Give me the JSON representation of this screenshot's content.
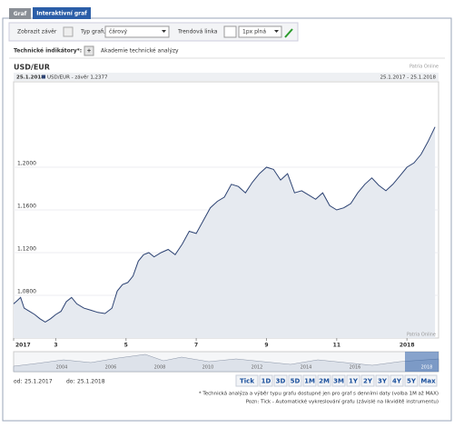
{
  "tabs": [
    "Graf",
    "Interaktivní graf"
  ],
  "toolbar": {
    "close_label": "Zobrazit závěr",
    "type_label": "Typ grafu*",
    "type_value": "čárový",
    "trend_label": "Trendová linka",
    "trend_value": "1px plná"
  },
  "indicators": {
    "label": "Technické indikátory*:",
    "button": "+",
    "link": "Akademie technické analýzy"
  },
  "chart_title": "USD/EUR",
  "source": "Patria Online",
  "header": {
    "date": "25.1.2018",
    "series_label": "USD/EUR - závěr 1,2377",
    "range": "25.1.2017 - 25.1.2018"
  },
  "navigator_years": [
    "2004",
    "2006",
    "2008",
    "2010",
    "2012",
    "2014",
    "2016",
    "2018"
  ],
  "range_inputs": {
    "from_label": "od:",
    "from": "25.1.2017",
    "to_label": "do:",
    "to": "25.1.2018"
  },
  "buttons": [
    "Tick",
    "1D",
    "3D",
    "5D",
    "1M",
    "2M",
    "3M",
    "1Y",
    "2Y",
    "3Y",
    "4Y",
    "5Y",
    "Max"
  ],
  "notes": [
    "* Technická analýza a výběr typu grafu dostupné jen pro graf s denními daty (volba 1M až MAX)",
    "Pozn: Tick - Automatické vykreslování grafu (závislé na likviditě instrumentu)"
  ],
  "chart_data": {
    "type": "line",
    "x": [
      1.8,
      1.9,
      2.0,
      2.1,
      2.25,
      2.4,
      2.55,
      2.7,
      2.85,
      3.0,
      3.15,
      3.3,
      3.45,
      3.6,
      3.8,
      4.0,
      4.2,
      4.4,
      4.6,
      4.75,
      4.9,
      5.05,
      5.2,
      5.35,
      5.5,
      5.65,
      5.8,
      6.0,
      6.2,
      6.4,
      6.6,
      6.8,
      7.0,
      7.2,
      7.4,
      7.6,
      7.8,
      8.0,
      8.2,
      8.4,
      8.6,
      8.8,
      9.0,
      9.2,
      9.4,
      9.6,
      9.8,
      10.0,
      10.2,
      10.4,
      10.6,
      10.8,
      11.0,
      11.2,
      11.4,
      11.6,
      11.8,
      12.0,
      12.2,
      12.4,
      12.6,
      12.8,
      13.0,
      13.2,
      13.4,
      13.6,
      13.8
    ],
    "series": [
      {
        "name": "USD/EUR",
        "color": "#2d4373",
        "values": [
          1.072,
          1.075,
          1.078,
          1.068,
          1.065,
          1.062,
          1.058,
          1.055,
          1.058,
          1.062,
          1.065,
          1.074,
          1.078,
          1.072,
          1.068,
          1.066,
          1.064,
          1.063,
          1.068,
          1.084,
          1.09,
          1.092,
          1.098,
          1.112,
          1.118,
          1.12,
          1.116,
          1.12,
          1.123,
          1.118,
          1.128,
          1.14,
          1.138,
          1.15,
          1.162,
          1.168,
          1.172,
          1.184,
          1.182,
          1.176,
          1.186,
          1.194,
          1.2,
          1.198,
          1.188,
          1.194,
          1.176,
          1.178,
          1.174,
          1.17,
          1.176,
          1.164,
          1.16,
          1.162,
          1.166,
          1.176,
          1.184,
          1.19,
          1.183,
          1.178,
          1.184,
          1.192,
          1.2,
          1.204,
          1.212,
          1.224,
          1.2377
        ]
      }
    ],
    "xlim": [
      1.8,
      13.9
    ],
    "xticks": [
      {
        "value": 1.8,
        "label": "2017"
      },
      3,
      5,
      7,
      9,
      11,
      {
        "value": 13,
        "label": "2018"
      }
    ],
    "ylim": [
      1.04,
      1.28
    ],
    "yticks": [
      {
        "value": 1.08,
        "label": "1,0800"
      },
      {
        "value": 1.12,
        "label": "1,1200"
      },
      {
        "value": 1.16,
        "label": "1,1600"
      },
      {
        "value": 1.2,
        "label": "1,2000"
      }
    ],
    "grid": true,
    "area_color": "#e6eaf0"
  }
}
